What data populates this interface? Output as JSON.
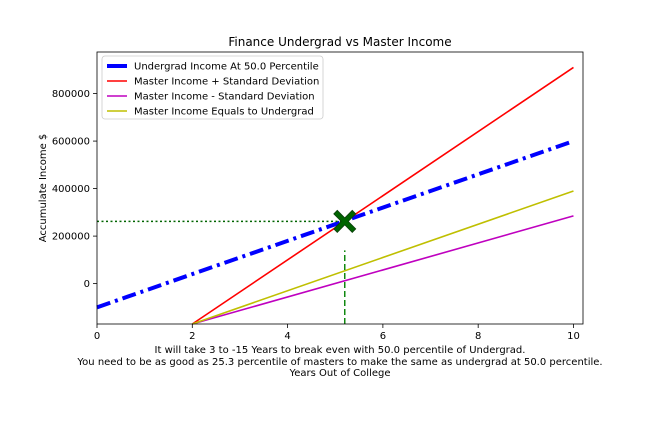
{
  "chart_data": {
    "type": "line",
    "title": "Finance Undergrad vs Master Income",
    "xlabel_lines": [
      "It will take 3 to -15 Years to break even with 50.0 percentile of Undergrad.",
      "You need to be as good as 25.3 percentile of masters to make the same as undergrad at 50.0 percentile.",
      "Years Out of College"
    ],
    "ylabel": "Accumulate Income $",
    "xlim": [
      0,
      10.2
    ],
    "ylim": [
      -170000,
      975000
    ],
    "xticks": [
      0,
      2,
      4,
      6,
      8,
      10
    ],
    "xtick_labels": [
      "0",
      "2",
      "4",
      "6",
      "8",
      "10"
    ],
    "yticks": [
      0,
      200000,
      400000,
      600000,
      800000
    ],
    "ytick_labels": [
      "0",
      "200000",
      "400000",
      "600000",
      "800000"
    ],
    "series": [
      {
        "name": "Undergrad Income At 50.0 Percentile",
        "color": "#0000ff",
        "style": "dashdot",
        "width": "thick",
        "x": [
          0,
          10
        ],
        "y": [
          -100000,
          600000
        ]
      },
      {
        "name": "Master Income + Standard Deviation",
        "color": "#ff0000",
        "style": "solid",
        "width": "normal",
        "x": [
          2,
          10
        ],
        "y": [
          -170000,
          910000
        ]
      },
      {
        "name": "Master Income - Standard Deviation",
        "color": "#bf00bf",
        "style": "solid",
        "width": "normal",
        "x": [
          2,
          10
        ],
        "y": [
          -170000,
          285000
        ]
      },
      {
        "name": "Master Income Equals to Undergrad",
        "color": "#bfbf00",
        "style": "solid",
        "width": "normal",
        "x": [
          2,
          10
        ],
        "y": [
          -170000,
          390000
        ]
      }
    ],
    "annotations": {
      "break_even_marker": {
        "x": 5.2,
        "y": 262000,
        "marker": "X",
        "color": "#006400"
      },
      "horizontal_guide": {
        "x": [
          0,
          5.2
        ],
        "y": 262000,
        "color": "#006400",
        "style": "dotted"
      },
      "vertical_guide": {
        "x": 5.2,
        "y": [
          -170000,
          140000
        ],
        "color": "#008000",
        "style": "dashed"
      }
    },
    "legend_position": "top-left"
  }
}
